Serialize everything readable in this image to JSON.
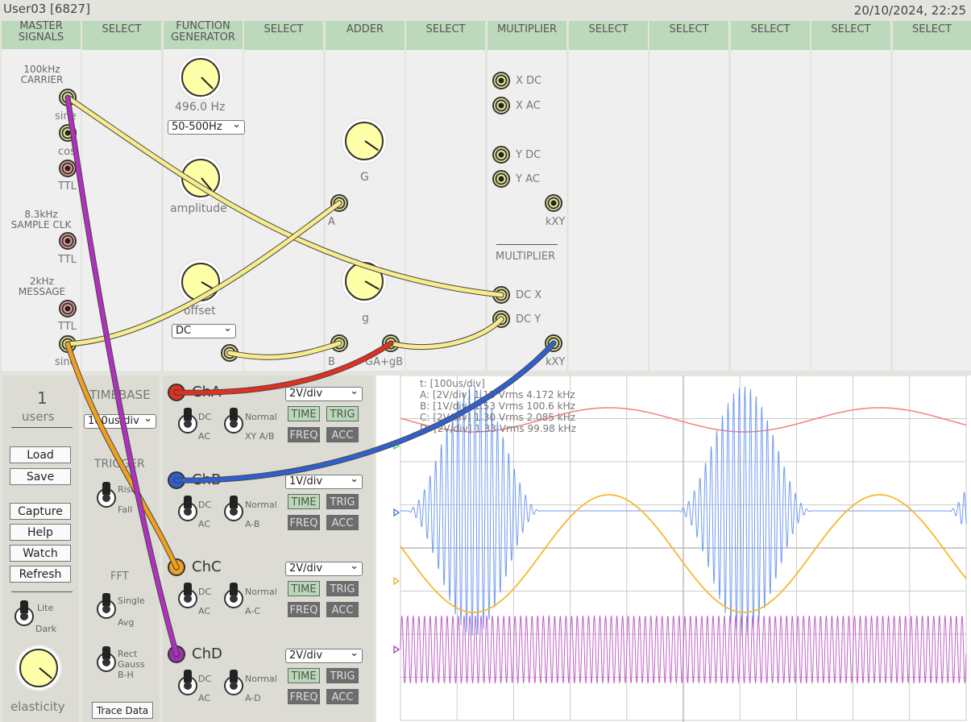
{
  "top": {
    "user": "User03 [6827]",
    "datetime": "20/10/2024, 22:25"
  },
  "slots": [
    {
      "title": "MASTER\nSIGNALS"
    },
    {
      "title": "SELECT"
    },
    {
      "title": "FUNCTION\nGENERATOR"
    },
    {
      "title": "SELECT"
    },
    {
      "title": "ADDER"
    },
    {
      "title": "SELECT"
    },
    {
      "title": "MULTIPLIER"
    },
    {
      "title": "SELECT"
    },
    {
      "title": "SELECT"
    },
    {
      "title": "SELECT"
    },
    {
      "title": "SELECT"
    },
    {
      "title": "SELECT"
    }
  ],
  "master": {
    "carrier_label": "100kHz\nCARRIER",
    "sine": "sine",
    "cos": "cos",
    "ttl1": "TTL",
    "clk_label": "8.3kHz\nSAMPLE CLK",
    "ttl2": "TTL",
    "msg_label": "2kHz\nMESSAGE",
    "ttl3": "TTL",
    "sine2": "sine"
  },
  "funcgen": {
    "freq": "496.0 Hz",
    "range": "50-500Hz",
    "amplitude": "amplitude",
    "offset": "offset",
    "mode": "DC"
  },
  "adder": {
    "G": "G",
    "A": "A",
    "g": "g",
    "B": "B",
    "out": "GA+gB"
  },
  "multiplier": {
    "xdc": "X DC",
    "xac": "X AC",
    "ydc": "Y DC",
    "yac": "Y AC",
    "kxy": "kXY",
    "title2": "MULTIPLIER",
    "dcx": "DC X",
    "dcy": "DC Y",
    "kxy2": "kXY"
  },
  "controls": {
    "users_count": "1",
    "users_label": "users",
    "buttons": [
      "Load",
      "Save",
      "Capture",
      "Help",
      "Watch",
      "Refresh"
    ],
    "lite": "Lite",
    "dark": "Dark",
    "elasticity": "elasticity"
  },
  "timebase": {
    "title": "TIMEBASE",
    "value": "100us/div",
    "trigger": "TRIGGER",
    "rise": "Rise",
    "fall": "Fall",
    "fft": "FFT",
    "single": "Single",
    "avg": "Avg",
    "rect": "Rect",
    "gauss": "Gauss",
    "bh": "B-H",
    "trace_data": "Trace Data"
  },
  "channels": [
    {
      "name": "ChA",
      "color": "#e03020",
      "vdiv": "2V/div",
      "mode": "Normal",
      "sub": "XY A/B"
    },
    {
      "name": "ChB",
      "color": "#3060d0",
      "vdiv": "1V/div",
      "mode": "Normal",
      "sub": "A-B"
    },
    {
      "name": "ChC",
      "color": "#f0a020",
      "vdiv": "2V/div",
      "mode": "Normal",
      "sub": "A-C"
    },
    {
      "name": "ChD",
      "color": "#a030b0",
      "vdiv": "2V/div",
      "mode": "Normal",
      "sub": "A-D"
    }
  ],
  "chbtn": {
    "dc": "DC",
    "ac": "AC",
    "time": "TIME",
    "trig": "TRIG",
    "freq": "FREQ",
    "acc": "ACC"
  },
  "scope": {
    "lines": [
      "t: [100us/div]",
      "A: [2V/div] 1.13 Vrms  4.172 kHz",
      "B: [1V/div] 1.53 Vrms  100.6 kHz",
      "C: [2V/div] 1.30 Vrms  2.085 kHz",
      "D: [2V/div] 1.33 Vrms  99.98 kHz"
    ]
  }
}
